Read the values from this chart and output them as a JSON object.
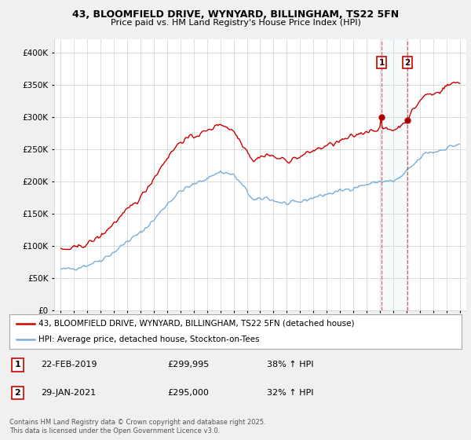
{
  "title1": "43, BLOOMFIELD DRIVE, WYNYARD, BILLINGHAM, TS22 5FN",
  "title2": "Price paid vs. HM Land Registry's House Price Index (HPI)",
  "ylim": [
    0,
    420000
  ],
  "yticks": [
    0,
    50000,
    100000,
    150000,
    200000,
    250000,
    300000,
    350000,
    400000
  ],
  "ytick_labels": [
    "£0",
    "£50K",
    "£100K",
    "£150K",
    "£200K",
    "£250K",
    "£300K",
    "£350K",
    "£400K"
  ],
  "background_color": "#f0f0f0",
  "plot_bg": "#ffffff",
  "red_color": "#cc0000",
  "blue_color": "#7aaedb",
  "marker1_date": 2019.12,
  "marker2_date": 2021.08,
  "marker1_price": 299995,
  "marker2_price": 295000,
  "legend1": "43, BLOOMFIELD DRIVE, WYNYARD, BILLINGHAM, TS22 5FN (detached house)",
  "legend2": "HPI: Average price, detached house, Stockton-on-Tees",
  "transaction1_date": "22-FEB-2019",
  "transaction1_price": "£299,995",
  "transaction1_hpi": "38% ↑ HPI",
  "transaction2_date": "29-JAN-2021",
  "transaction2_price": "£295,000",
  "transaction2_hpi": "32% ↑ HPI",
  "footnote": "Contains HM Land Registry data © Crown copyright and database right 2025.\nThis data is licensed under the Open Government Licence v3.0.",
  "xlim": [
    1994.5,
    2025.5
  ],
  "xticks": [
    1995,
    1996,
    1997,
    1998,
    1999,
    2000,
    2001,
    2002,
    2003,
    2004,
    2005,
    2006,
    2007,
    2008,
    2009,
    2010,
    2011,
    2012,
    2013,
    2014,
    2015,
    2016,
    2017,
    2018,
    2019,
    2020,
    2021,
    2022,
    2023,
    2024,
    2025
  ]
}
